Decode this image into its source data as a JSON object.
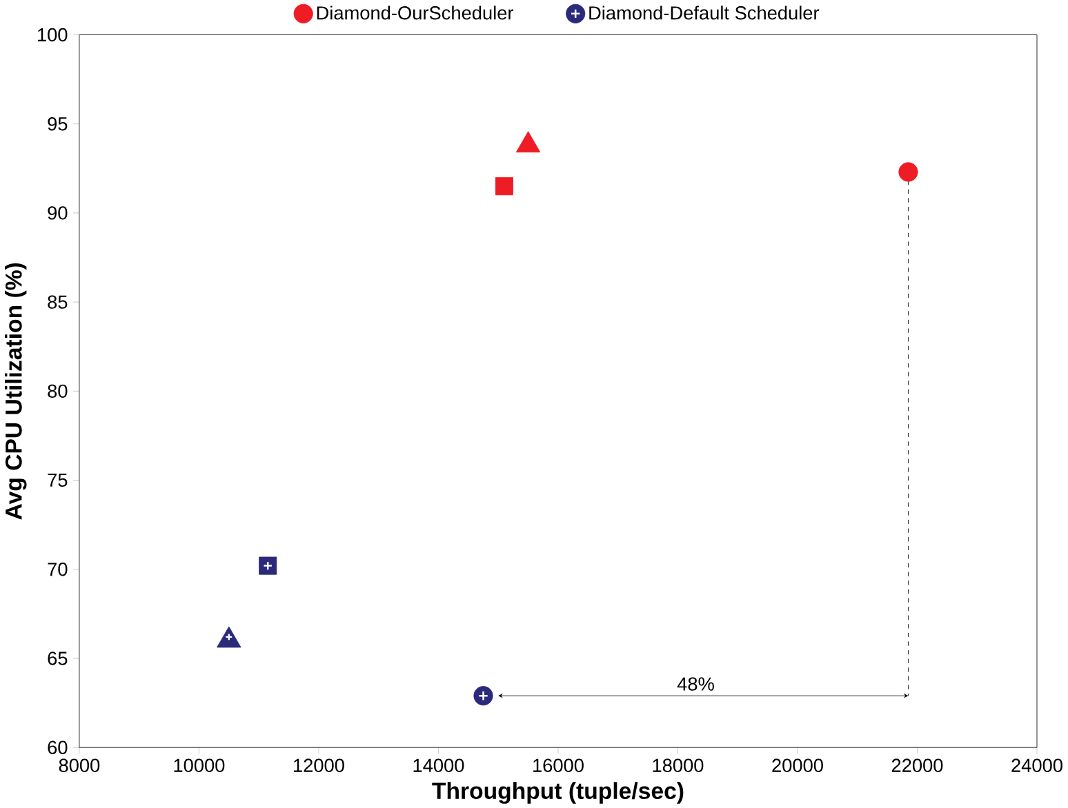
{
  "chart_data": {
    "type": "scatter",
    "xlabel": "Throughput (tuple/sec)",
    "ylabel": "Avg CPU Utilization (%)",
    "xlim": [
      8000,
      24000
    ],
    "xticks": [
      8000,
      10000,
      12000,
      14000,
      16000,
      18000,
      20000,
      22000,
      24000
    ],
    "ylim": [
      60,
      100
    ],
    "yticks": [
      60,
      65,
      70,
      75,
      80,
      85,
      90,
      95,
      100
    ],
    "legend": "top",
    "grid": false,
    "series": [
      {
        "name": "Diamond-OurScheduler",
        "color": "#ee1c25",
        "marker": "circle",
        "x": [
          21850
        ],
        "values": [
          92.3
        ]
      },
      {
        "color": "#ee1c25",
        "marker": "square",
        "x": [
          15100
        ],
        "values": [
          91.5
        ]
      },
      {
        "color": "#ee1c25",
        "marker": "triangle",
        "x": [
          15500
        ],
        "values": [
          93.8
        ]
      },
      {
        "name": "Diamond-Default Scheduler",
        "color": "#2b2a7a",
        "marker": "circle-plus",
        "x": [
          14750
        ],
        "values": [
          62.9
        ]
      },
      {
        "color": "#2b2a7a",
        "marker": "square-plus",
        "x": [
          11150
        ],
        "values": [
          70.2
        ]
      },
      {
        "color": "#2b2a7a",
        "marker": "triangle-plus",
        "x": [
          10500
        ],
        "values": [
          66.2
        ]
      }
    ],
    "annotations": [
      "48%"
    ]
  }
}
